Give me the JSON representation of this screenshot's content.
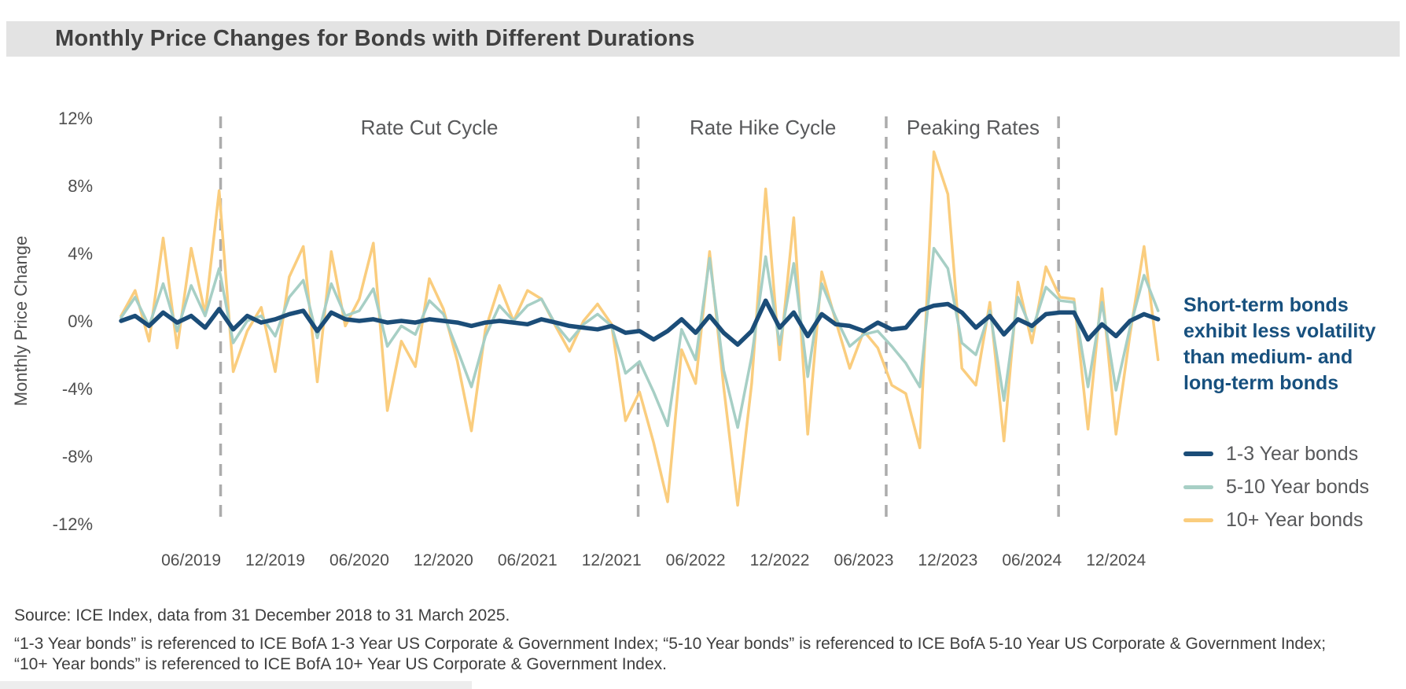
{
  "title_bar": {
    "title": "Monthly Price Changes for Bonds with Different Durations",
    "background": "#E3E3E3"
  },
  "chart_data": {
    "type": "line",
    "title": "Monthly Price Changes for Bonds with Different Durations",
    "ylabel": "Monthly Price Change",
    "ylim": [
      -12,
      12
    ],
    "grid": false,
    "legend_position": "right",
    "x_first_month": "01/2019",
    "x_last_month": "03/2025",
    "months_count": 75,
    "yticks": [
      {
        "value": 12,
        "label": "12%"
      },
      {
        "value": 8,
        "label": "8%"
      },
      {
        "value": 4,
        "label": "4%"
      },
      {
        "value": 0,
        "label": "0%"
      },
      {
        "value": -4,
        "label": "-4%"
      },
      {
        "value": -8,
        "label": "-8%"
      },
      {
        "value": -12,
        "label": "-12%"
      }
    ],
    "xticks": [
      {
        "label": "06/2019",
        "month_index": 5
      },
      {
        "label": "12/2019",
        "month_index": 11
      },
      {
        "label": "06/2020",
        "month_index": 17
      },
      {
        "label": "12/2020",
        "month_index": 23
      },
      {
        "label": "06/2021",
        "month_index": 29
      },
      {
        "label": "12/2021",
        "month_index": 35
      },
      {
        "label": "06/2022",
        "month_index": 41
      },
      {
        "label": "12/2022",
        "month_index": 47
      },
      {
        "label": "06/2023",
        "month_index": 53
      },
      {
        "label": "12/2023",
        "month_index": 59
      },
      {
        "label": "06/2024",
        "month_index": 65
      },
      {
        "label": "12/2024",
        "month_index": 71
      }
    ],
    "phase_dividers_month_index": [
      7.1,
      36.9,
      54.6,
      66.9
    ],
    "phase_divider_color": "#ACACAC",
    "phase_labels": [
      {
        "text": "Rate Cut Cycle",
        "center_month_index": 22.0
      },
      {
        "text": "Rate Hike Cycle",
        "center_month_index": 45.8
      },
      {
        "text": "Peaking Rates",
        "center_month_index": 60.8
      }
    ],
    "phase_label_color": "#58595B",
    "axis_text_color": "#4F4F4F",
    "series": [
      {
        "name": "1-3 Year bonds",
        "color": "#1B4D78",
        "stroke_width": 5.5,
        "values": [
          0.0,
          0.3,
          -0.3,
          0.5,
          -0.1,
          0.3,
          -0.4,
          0.7,
          -0.5,
          0.3,
          -0.1,
          0.1,
          0.4,
          0.6,
          -0.6,
          0.5,
          0.1,
          0.0,
          0.1,
          -0.1,
          0.0,
          -0.1,
          0.1,
          0.0,
          -0.1,
          -0.3,
          -0.1,
          0.0,
          -0.1,
          -0.2,
          0.1,
          -0.1,
          -0.3,
          -0.4,
          -0.5,
          -0.3,
          -0.7,
          -0.6,
          -1.1,
          -0.6,
          0.1,
          -0.7,
          0.3,
          -0.7,
          -1.4,
          -0.6,
          1.2,
          -0.4,
          0.5,
          -0.9,
          0.4,
          -0.2,
          -0.3,
          -0.6,
          -0.1,
          -0.5,
          -0.4,
          0.6,
          0.9,
          1.0,
          0.5,
          -0.4,
          0.3,
          -0.8,
          0.1,
          -0.3,
          0.4,
          0.5,
          0.5,
          -1.1,
          -0.2,
          -0.9,
          0.0,
          0.4,
          0.1
        ]
      },
      {
        "name": "5-10 Year bonds",
        "color": "#A7CFC5",
        "stroke_width": 3.5,
        "values": [
          0.2,
          1.4,
          -0.3,
          2.2,
          -0.6,
          2.1,
          0.3,
          3.1,
          -1.3,
          0.0,
          0.3,
          -0.9,
          1.4,
          2.4,
          -1.0,
          2.2,
          0.3,
          0.6,
          1.9,
          -1.5,
          -0.3,
          -0.8,
          1.2,
          0.4,
          -1.7,
          -3.9,
          -0.9,
          0.9,
          0.0,
          0.9,
          1.3,
          -0.2,
          -1.2,
          -0.2,
          0.4,
          -0.3,
          -3.1,
          -2.4,
          -4.2,
          -6.2,
          -0.5,
          -2.3,
          3.7,
          -2.9,
          -6.3,
          -2.1,
          3.8,
          -1.4,
          3.4,
          -3.3,
          2.2,
          0.2,
          -1.5,
          -0.8,
          -0.6,
          -1.5,
          -2.5,
          -3.9,
          4.3,
          3.1,
          -1.3,
          -2.0,
          0.6,
          -4.7,
          1.4,
          -0.6,
          2.0,
          1.2,
          1.1,
          -3.9,
          1.1,
          -4.1,
          -0.4,
          2.7,
          0.6
        ]
      },
      {
        "name": "10+ Year bonds",
        "color": "#FACD7E",
        "stroke_width": 3.5,
        "values": [
          0.3,
          1.8,
          -1.2,
          4.9,
          -1.6,
          4.3,
          0.4,
          7.7,
          -3.0,
          -0.6,
          0.8,
          -3.0,
          2.6,
          4.4,
          -3.6,
          4.1,
          -0.3,
          1.3,
          4.6,
          -5.3,
          -1.2,
          -2.7,
          2.5,
          0.7,
          -2.4,
          -6.5,
          -0.5,
          2.1,
          0.0,
          1.8,
          1.3,
          -0.3,
          -1.8,
          0.0,
          1.0,
          -0.2,
          -5.9,
          -4.2,
          -7.2,
          -10.7,
          -1.7,
          -3.7,
          4.1,
          -3.9,
          -10.9,
          -3.7,
          7.8,
          -2.3,
          6.1,
          -6.7,
          2.9,
          0.0,
          -2.8,
          -0.6,
          -1.6,
          -3.8,
          -4.3,
          -7.5,
          10.0,
          7.5,
          -2.8,
          -3.8,
          1.1,
          -7.1,
          2.3,
          -1.3,
          3.2,
          1.4,
          1.3,
          -6.4,
          1.9,
          -6.7,
          -0.8,
          4.4,
          -2.3
        ]
      }
    ]
  },
  "annotation": {
    "lines": [
      "Short-term bonds",
      "exhibit less volatility",
      "than medium- and",
      "long-term bonds"
    ],
    "color": "#17507E"
  },
  "legend": {
    "items": [
      {
        "label": "1-3 Year bonds",
        "color": "#1B4D78"
      },
      {
        "label": "5-10 Year bonds",
        "color": "#A7CFC5"
      },
      {
        "label": "10+ Year bonds",
        "color": "#FACD7E"
      }
    ]
  },
  "footer": {
    "source_line": "Source: ICE Index, data from 31 December 2018 to 31 March 2025.",
    "reference_lines": [
      "“1-3 Year bonds” is referenced to ICE BofA 1-3 Year US Corporate & Government Index; “5-10 Year bonds” is referenced to ICE BofA 5-10 Year US Corporate & Government Index;",
      "“10+ Year bonds” is referenced to ICE BofA 10+ Year US Corporate & Government Index."
    ]
  }
}
